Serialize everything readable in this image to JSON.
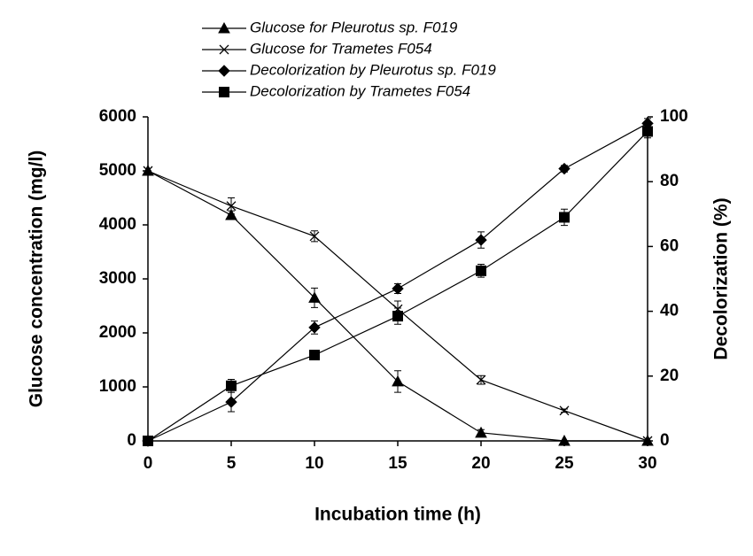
{
  "chart_data": {
    "type": "line",
    "x_label": "Incubation time (h)",
    "y_label": "Glucose concentration (mg/l)",
    "y2_label": "Decolorization (%)",
    "x": [
      0,
      5,
      10,
      15,
      20,
      25,
      30
    ],
    "xlim": [
      0,
      30
    ],
    "xticks": [
      0,
      5,
      10,
      15,
      20,
      25,
      30
    ],
    "ylim": [
      0,
      6000
    ],
    "yticks": [
      0,
      1000,
      2000,
      3000,
      4000,
      5000,
      6000
    ],
    "y2lim": [
      0,
      100
    ],
    "y2ticks": [
      0,
      20,
      40,
      60,
      80,
      100
    ],
    "series": [
      {
        "name": "Glucose for Pleurotus sp. F019",
        "color": "#000000",
        "marker": "triangle",
        "values": [
          5000,
          4180,
          2650,
          1100,
          150,
          0,
          0
        ],
        "errors": [
          0,
          80,
          180,
          200,
          60,
          0,
          0
        ]
      },
      {
        "name": "Glucose for Trametes F054",
        "color": "#000000",
        "marker": "x",
        "values": [
          5000,
          4350,
          3790,
          2440,
          1130,
          560,
          0
        ],
        "errors": [
          0,
          150,
          100,
          150,
          80,
          30,
          0
        ]
      },
      {
        "name": "Decolorization by Pleurotus sp. F019",
        "color": "#000000",
        "marker": "diamond",
        "axis": "y2",
        "values": [
          0,
          12,
          35,
          47,
          62,
          84,
          98
        ],
        "errors": [
          0,
          3,
          2,
          1.5,
          2.5,
          1,
          1.5
        ]
      },
      {
        "name": "Decolorization by Trametes F054",
        "color": "#000000",
        "marker": "square",
        "axis": "y2",
        "values": [
          0,
          17,
          26.5,
          38.5,
          52.5,
          69,
          95.5
        ],
        "errors": [
          0,
          2,
          1.5,
          2.5,
          2,
          2.5,
          2
        ]
      }
    ]
  }
}
